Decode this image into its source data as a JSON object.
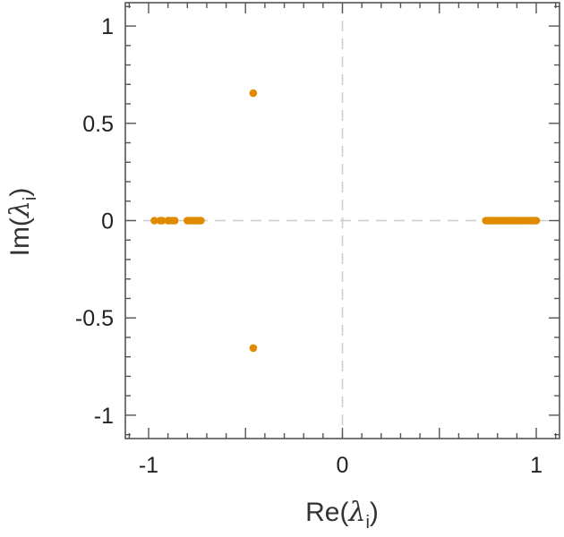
{
  "chart_data": {
    "type": "scatter",
    "title": "",
    "xlabel": {
      "prefix": "Re(",
      "symbol": "λ",
      "subscript": "i",
      "suffix": ")"
    },
    "ylabel": {
      "prefix": "Im(",
      "symbol": "λ",
      "subscript": "i",
      "suffix": ")"
    },
    "xlim": [
      -1.12,
      1.12
    ],
    "ylim": [
      -1.12,
      1.12
    ],
    "xticks": [
      {
        "value": -1,
        "label": "-1"
      },
      {
        "value": 0,
        "label": "0"
      },
      {
        "value": 1,
        "label": "1"
      }
    ],
    "yticks": [
      {
        "value": 1,
        "label": "1"
      },
      {
        "value": 0.5,
        "label": "0.5"
      },
      {
        "value": 0,
        "label": "0"
      },
      {
        "value": -0.5,
        "label": "-0.5"
      },
      {
        "value": -1,
        "label": "-1"
      }
    ],
    "minor_tick_step": 0.1,
    "reference_lines": {
      "x": 0,
      "y": 0,
      "style": "dashed",
      "color": "#cccccc"
    },
    "marker_color": "#e08a00",
    "points": [
      {
        "x": -0.97,
        "y": 0
      },
      {
        "x": -0.94,
        "y": 0
      },
      {
        "x": -0.93,
        "y": 0
      },
      {
        "x": -0.9,
        "y": 0
      },
      {
        "x": -0.89,
        "y": 0
      },
      {
        "x": -0.875,
        "y": 0
      },
      {
        "x": -0.865,
        "y": 0
      },
      {
        "x": -0.8,
        "y": 0
      },
      {
        "x": -0.79,
        "y": 0
      },
      {
        "x": -0.78,
        "y": 0
      },
      {
        "x": -0.77,
        "y": 0
      },
      {
        "x": -0.76,
        "y": 0
      },
      {
        "x": -0.75,
        "y": 0
      },
      {
        "x": -0.74,
        "y": 0
      },
      {
        "x": -0.73,
        "y": 0
      },
      {
        "x": -0.46,
        "y": 0.655
      },
      {
        "x": -0.46,
        "y": -0.655
      },
      {
        "x": 0.74,
        "y": 0
      },
      {
        "x": 0.75,
        "y": 0
      },
      {
        "x": 0.76,
        "y": 0
      },
      {
        "x": 0.77,
        "y": 0
      },
      {
        "x": 0.78,
        "y": 0
      },
      {
        "x": 0.79,
        "y": 0
      },
      {
        "x": 0.8,
        "y": 0
      },
      {
        "x": 0.81,
        "y": 0
      },
      {
        "x": 0.82,
        "y": 0
      },
      {
        "x": 0.83,
        "y": 0
      },
      {
        "x": 0.84,
        "y": 0
      },
      {
        "x": 0.85,
        "y": 0
      },
      {
        "x": 0.86,
        "y": 0
      },
      {
        "x": 0.87,
        "y": 0
      },
      {
        "x": 0.88,
        "y": 0
      },
      {
        "x": 0.89,
        "y": 0
      },
      {
        "x": 0.9,
        "y": 0
      },
      {
        "x": 0.91,
        "y": 0
      },
      {
        "x": 0.92,
        "y": 0
      },
      {
        "x": 0.93,
        "y": 0
      },
      {
        "x": 0.94,
        "y": 0
      },
      {
        "x": 0.95,
        "y": 0
      },
      {
        "x": 0.96,
        "y": 0
      },
      {
        "x": 0.97,
        "y": 0
      },
      {
        "x": 0.98,
        "y": 0
      },
      {
        "x": 0.99,
        "y": 0
      },
      {
        "x": 1.0,
        "y": 0
      }
    ]
  }
}
